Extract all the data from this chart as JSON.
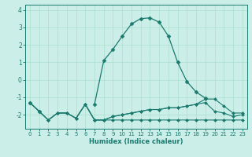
{
  "xlabel": "Humidex (Indice chaleur)",
  "background_color": "#cceee8",
  "grid_color": "#aaddcc",
  "line_color": "#1a7a6e",
  "x_values": [
    0,
    1,
    2,
    3,
    4,
    5,
    6,
    7,
    8,
    9,
    10,
    11,
    12,
    13,
    14,
    15,
    16,
    17,
    18,
    19,
    20,
    21,
    22,
    23
  ],
  "series": [
    {
      "y": [
        -1.3,
        -1.8,
        -2.3,
        -1.9,
        -1.9,
        -2.2,
        -1.4,
        -2.3,
        -2.3,
        -2.3,
        -2.3,
        -2.3,
        -2.3,
        -2.3,
        -2.3,
        -2.3,
        -2.3,
        -2.3,
        -2.3,
        -2.3,
        -2.3,
        -2.3,
        -2.3,
        -2.3
      ],
      "marker": "D",
      "markersize": 2.0,
      "linewidth": 0.8
    },
    {
      "y": [
        -1.3,
        -1.8,
        -2.3,
        -1.9,
        -1.9,
        -2.2,
        -1.4,
        -2.3,
        -2.3,
        -2.1,
        -2.0,
        -1.9,
        -1.8,
        -1.7,
        -1.7,
        -1.6,
        -1.6,
        -1.5,
        -1.4,
        -1.3,
        -1.8,
        -1.9,
        -2.1,
        -2.0
      ],
      "marker": "D",
      "markersize": 2.0,
      "linewidth": 0.8
    },
    {
      "y": [
        -1.3,
        -1.8,
        -2.3,
        -1.9,
        -1.9,
        -2.2,
        -1.4,
        -2.3,
        -2.3,
        -2.1,
        -2.0,
        -1.9,
        -1.8,
        -1.7,
        -1.7,
        -1.6,
        -1.6,
        -1.5,
        -1.4,
        -1.1,
        -1.1,
        -1.5,
        -1.9,
        -1.9
      ],
      "marker": "D",
      "markersize": 2.0,
      "linewidth": 0.8
    },
    {
      "y": [
        -1.3,
        -1.8,
        null,
        null,
        null,
        null,
        null,
        -1.4,
        1.1,
        1.75,
        2.5,
        3.2,
        3.5,
        3.55,
        3.3,
        2.5,
        1.0,
        -0.1,
        -0.7,
        -1.05,
        null,
        null,
        null,
        null
      ],
      "marker": "D",
      "markersize": 2.5,
      "linewidth": 0.9
    }
  ],
  "ylim": [
    -2.8,
    4.3
  ],
  "xlim": [
    -0.5,
    23.5
  ],
  "yticks": [
    -2,
    -1,
    0,
    1,
    2,
    3,
    4
  ],
  "xticks": [
    0,
    1,
    2,
    3,
    4,
    5,
    6,
    7,
    8,
    9,
    10,
    11,
    12,
    13,
    14,
    15,
    16,
    17,
    18,
    19,
    20,
    21,
    22,
    23
  ]
}
